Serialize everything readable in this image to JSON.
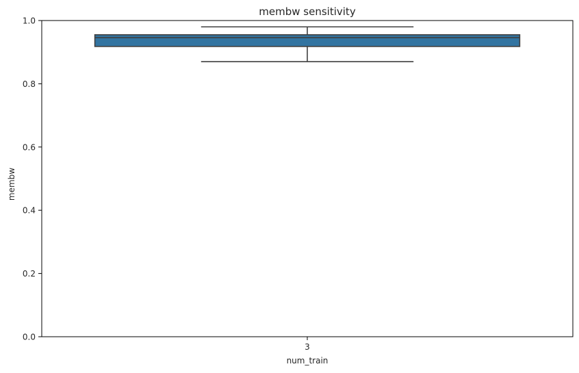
{
  "chart_data": {
    "type": "box",
    "title": "membw sensitivity",
    "xlabel": "num_train",
    "ylabel": "membw",
    "categories": [
      "3"
    ],
    "boxes": [
      {
        "category": "3",
        "whisker_low": 0.87,
        "q1": 0.918,
        "median": 0.946,
        "q3": 0.955,
        "whisker_high": 0.98
      }
    ],
    "ylim": [
      0.0,
      1.0
    ],
    "yticks": [
      0.0,
      0.2,
      0.4,
      0.6,
      0.8,
      1.0
    ],
    "ytick_labels": [
      "0.0",
      "0.2",
      "0.4",
      "0.6",
      "0.8",
      "1.0"
    ],
    "grid": false,
    "box_color": "#3274a1",
    "line_color": "#3f3f3f"
  }
}
